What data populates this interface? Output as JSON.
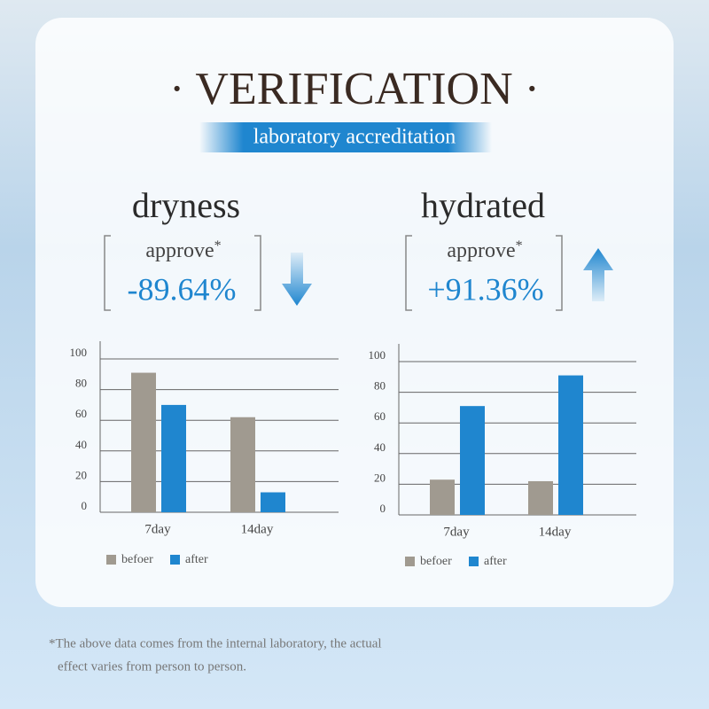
{
  "header": {
    "title": "· VERIFICATION ·",
    "subtitle": "laboratory accreditation"
  },
  "stats": [
    {
      "label": "dryness",
      "note": "approve",
      "mark": "*",
      "value": "-89.64%"
    },
    {
      "label": "hydrated",
      "note": "approve",
      "mark": "*",
      "value": "+91.36%"
    }
  ],
  "chart_data": [
    {
      "type": "bar",
      "categories": [
        "7day",
        "14day"
      ],
      "series": [
        {
          "name": "befoer",
          "color": "#a09a90",
          "values": [
            91,
            62
          ]
        },
        {
          "name": "after",
          "color": "#1f86cf",
          "values": [
            70,
            13
          ]
        }
      ],
      "ylim": [
        0,
        100
      ],
      "yticks": [
        0,
        20,
        40,
        60,
        80,
        100
      ],
      "grid": true
    },
    {
      "type": "bar",
      "categories": [
        "7day",
        "14day"
      ],
      "series": [
        {
          "name": "befoer",
          "color": "#a09a90",
          "values": [
            23,
            22
          ]
        },
        {
          "name": "after",
          "color": "#1f86cf",
          "values": [
            71,
            91
          ]
        }
      ],
      "ylim": [
        0,
        100
      ],
      "yticks": [
        0,
        20,
        40,
        60,
        80,
        100
      ],
      "grid": true
    }
  ],
  "footnote": [
    "*The above data comes from the internal laboratory, the actual",
    "effect varies from person to person."
  ]
}
